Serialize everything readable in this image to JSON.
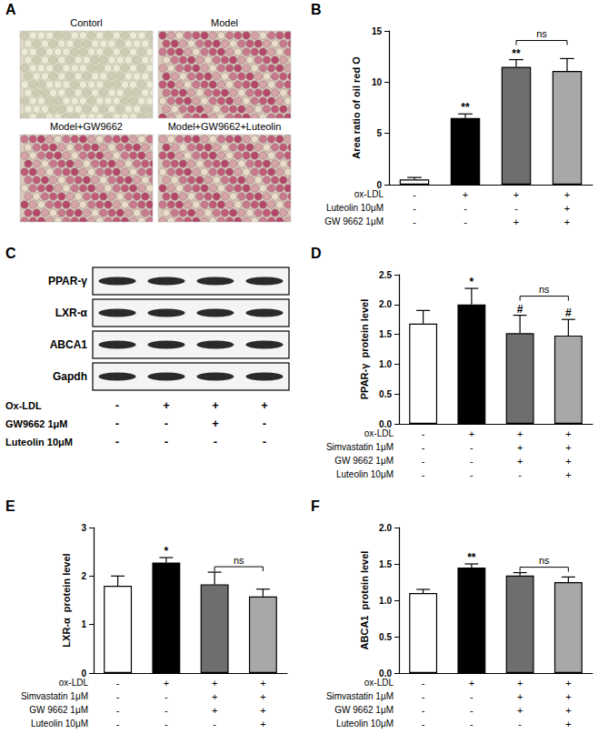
{
  "panels": {
    "A": {
      "letter": "A",
      "images": [
        "Contorl",
        "Model",
        "Model+GW9662",
        "Model+GW9662+Luteolin"
      ]
    },
    "C": {
      "letter": "C",
      "blot_rows": [
        "PPAR-γ",
        "LXR-α",
        "ABCA1",
        "Gapdh"
      ],
      "conditions": [
        {
          "label": "Ox-LDL",
          "marks": [
            "-",
            "+",
            "+",
            "+"
          ]
        },
        {
          "label": "GW9662 1μM",
          "marks": [
            "-",
            "-",
            "+",
            "-"
          ]
        },
        {
          "label": "Luteolin 10μM",
          "marks": [
            "-",
            "-",
            "-",
            "-"
          ]
        }
      ]
    }
  },
  "chart_data": [
    {
      "letter": "B",
      "type": "bar",
      "y_label": "Area ratio of oil red O",
      "categories": [
        null,
        null,
        null,
        null
      ],
      "values": [
        0.5,
        6.5,
        11.5,
        11.1
      ],
      "errors": [
        0.2,
        0.4,
        0.7,
        1.2
      ],
      "colors": [
        "#ffffff",
        "#000000",
        "#6e6e6e",
        "#a8a8a8"
      ],
      "annotations": [
        null,
        "**",
        "**",
        null
      ],
      "brackets": [
        {
          "from": 2,
          "to": 3,
          "label": "ns"
        }
      ],
      "conditions": [
        {
          "label": "ox-LDL",
          "marks": [
            "-",
            "+",
            "+",
            "+"
          ]
        },
        {
          "label": "Luteolin 10μM",
          "marks": [
            "-",
            "-",
            "-",
            "+"
          ]
        },
        {
          "label": "GW 9662 1μM",
          "marks": [
            "-",
            "-",
            "+",
            "+"
          ]
        }
      ],
      "ylim": [
        0,
        15
      ],
      "yticks": [
        0,
        5,
        10,
        15
      ],
      "grid": false
    },
    {
      "letter": "D",
      "type": "bar",
      "y_label": "PPAR-γ  protein level",
      "categories": [
        null,
        null,
        null,
        null
      ],
      "values": [
        1.68,
        2.0,
        1.52,
        1.48
      ],
      "errors": [
        0.22,
        0.27,
        0.3,
        0.27
      ],
      "colors": [
        "#ffffff",
        "#000000",
        "#6e6e6e",
        "#a8a8a8"
      ],
      "annotations": [
        null,
        "*",
        "#",
        "#"
      ],
      "brackets": [
        {
          "from": 2,
          "to": 3,
          "label": "ns"
        }
      ],
      "conditions": [
        {
          "label": "ox-LDL",
          "marks": [
            "-",
            "+",
            "+",
            "+"
          ]
        },
        {
          "label": "Simvastatin 1μM",
          "marks": [
            "-",
            "-",
            "+",
            "+"
          ]
        },
        {
          "label": "GW 9662 1μM",
          "marks": [
            "-",
            "-",
            "+",
            "+"
          ]
        },
        {
          "label": "Luteolin 10μM",
          "marks": [
            "-",
            "-",
            "-",
            "+"
          ]
        }
      ],
      "ylim": [
        0,
        2.5
      ],
      "yticks": [
        {
          "value": 0,
          "label": "0.0"
        },
        0.5,
        {
          "value": 1,
          "label": "1.0"
        },
        1.5,
        {
          "value": 2,
          "label": "2.0"
        },
        2.5
      ],
      "grid": false
    },
    {
      "letter": "E",
      "type": "bar",
      "y_label": "LXR-α  protein level",
      "categories": [
        null,
        null,
        null,
        null
      ],
      "values": [
        1.8,
        2.28,
        1.83,
        1.58
      ],
      "errors": [
        0.2,
        0.1,
        0.25,
        0.15
      ],
      "colors": [
        "#ffffff",
        "#000000",
        "#6e6e6e",
        "#a8a8a8"
      ],
      "annotations": [
        null,
        "*",
        null,
        null
      ],
      "brackets": [
        {
          "from": 2,
          "to": 3,
          "label": "ns"
        }
      ],
      "conditions": [
        {
          "label": "ox-LDL",
          "marks": [
            "-",
            "+",
            "+",
            "+"
          ]
        },
        {
          "label": "Simvastatin 1μM",
          "marks": [
            "-",
            "-",
            "+",
            "+"
          ]
        },
        {
          "label": "GW 9662 1μM",
          "marks": [
            "-",
            "-",
            "+",
            "+"
          ]
        },
        {
          "label": "Luteolin 10μM",
          "marks": [
            "-",
            "-",
            "-",
            "+"
          ]
        }
      ],
      "ylim": [
        0,
        3
      ],
      "yticks": [
        0,
        1,
        2,
        3
      ],
      "grid": false
    },
    {
      "letter": "F",
      "type": "bar",
      "y_label": "ABCA1  protein level",
      "categories": [
        null,
        null,
        null,
        null
      ],
      "values": [
        1.1,
        1.45,
        1.34,
        1.25
      ],
      "errors": [
        0.05,
        0.05,
        0.04,
        0.07
      ],
      "colors": [
        "#ffffff",
        "#000000",
        "#6e6e6e",
        "#a8a8a8"
      ],
      "annotations": [
        null,
        "**",
        null,
        null
      ],
      "brackets": [
        {
          "from": 2,
          "to": 3,
          "label": "ns"
        }
      ],
      "conditions": [
        {
          "label": "ox-LDL",
          "marks": [
            "-",
            "+",
            "+",
            "+"
          ]
        },
        {
          "label": "Simvastatin 1μM",
          "marks": [
            "-",
            "-",
            "+",
            "+"
          ]
        },
        {
          "label": "GW 9662 1μM",
          "marks": [
            "-",
            "-",
            "+",
            "+"
          ]
        },
        {
          "label": "Luteolin 10μM",
          "marks": [
            "-",
            "-",
            "-",
            "+"
          ]
        }
      ],
      "ylim": [
        0,
        2
      ],
      "yticks": [
        {
          "value": 0,
          "label": "0.0"
        },
        0.5,
        {
          "value": 1,
          "label": "1.0"
        },
        1.5,
        {
          "value": 2,
          "label": "2.0"
        }
      ],
      "grid": false
    }
  ]
}
